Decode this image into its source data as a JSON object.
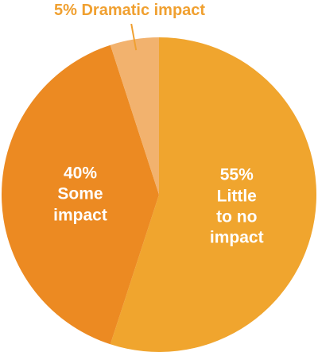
{
  "chart_data": {
    "type": "pie",
    "categories": [
      "Little to no impact",
      "Some impact",
      "Dramatic impact"
    ],
    "values": [
      55,
      40,
      5
    ],
    "value_labels": [
      "55%",
      "40%",
      "5%"
    ],
    "colors": [
      "#f0a52e",
      "#ec8a22",
      "#f2b26e"
    ],
    "label_color": "#f0a030"
  }
}
